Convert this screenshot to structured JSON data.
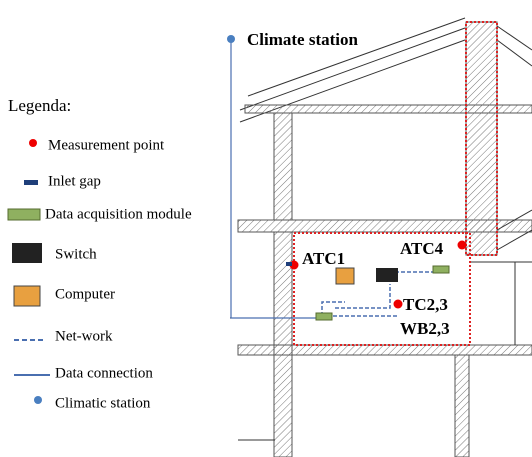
{
  "title": "Climate station",
  "legend": {
    "title": "Legenda:",
    "items": [
      "Measurement point",
      "Inlet gap",
      "Data acquisition module",
      "Switch",
      "Computer",
      "Net-work",
      "Data connection",
      "Climatic station"
    ]
  },
  "labels": [
    "ATC1",
    "ATC4",
    "TC2,3",
    "WB2,3"
  ]
}
